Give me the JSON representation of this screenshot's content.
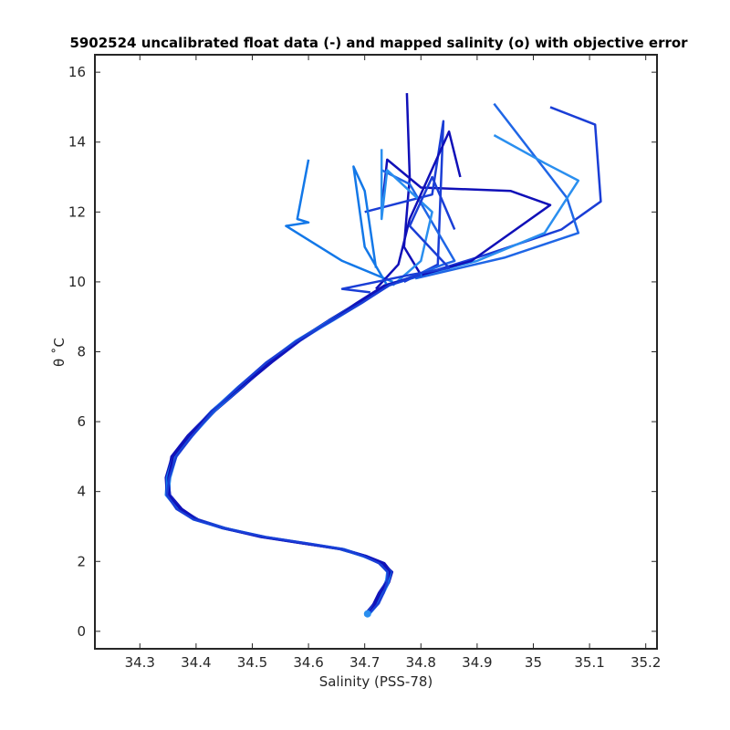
{
  "chart_data": {
    "type": "line",
    "title": "5902524 uncalibrated float data (-) and mapped salinity (o) with objective error",
    "xlabel": "Salinity (PSS-78)",
    "ylabel": "θ ˚C",
    "xlim": [
      34.22,
      35.22
    ],
    "ylim": [
      -0.5,
      16.5
    ],
    "xticks": [
      "34.3",
      "34.4",
      "34.5",
      "34.6",
      "34.7",
      "34.8",
      "34.9",
      "35",
      "35.1",
      "35.2"
    ],
    "yticks": [
      "0",
      "2",
      "4",
      "6",
      "8",
      "10",
      "12",
      "14",
      "16"
    ],
    "grid": false,
    "colors": [
      "#1010b8",
      "#1a3ed6",
      "#1f66e6",
      "#2a8fef",
      "#1378e8"
    ],
    "common_profile": [
      [
        34.705,
        0.5
      ],
      [
        34.72,
        0.8
      ],
      [
        34.73,
        1.1
      ],
      [
        34.74,
        1.4
      ],
      [
        34.745,
        1.7
      ],
      [
        34.73,
        1.95
      ],
      [
        34.7,
        2.15
      ],
      [
        34.66,
        2.35
      ],
      [
        34.6,
        2.5
      ],
      [
        34.52,
        2.7
      ],
      [
        34.45,
        2.95
      ],
      [
        34.4,
        3.2
      ],
      [
        34.37,
        3.5
      ],
      [
        34.35,
        3.9
      ],
      [
        34.35,
        4.4
      ],
      [
        34.36,
        5.0
      ],
      [
        34.39,
        5.6
      ],
      [
        34.43,
        6.3
      ],
      [
        34.48,
        7.0
      ],
      [
        34.53,
        7.7
      ],
      [
        34.58,
        8.3
      ],
      [
        34.64,
        8.9
      ],
      [
        34.69,
        9.4
      ],
      [
        34.74,
        9.9
      ],
      [
        34.8,
        10.2
      ]
    ],
    "upper_profiles": [
      [
        [
          34.8,
          10.2
        ],
        [
          34.77,
          11.0
        ],
        [
          34.78,
          13.0
        ],
        [
          34.775,
          15.4
        ]
      ],
      [
        [
          34.8,
          10.2
        ],
        [
          34.92,
          10.8
        ],
        [
          35.05,
          11.5
        ],
        [
          35.12,
          12.3
        ],
        [
          35.11,
          14.5
        ],
        [
          35.03,
          15.0
        ]
      ],
      [
        [
          34.79,
          10.1
        ],
        [
          34.95,
          10.7
        ],
        [
          35.08,
          11.4
        ],
        [
          35.06,
          12.4
        ],
        [
          34.93,
          15.1
        ]
      ],
      [
        [
          34.78,
          10.1
        ],
        [
          34.9,
          10.6
        ],
        [
          35.02,
          11.4
        ],
        [
          35.08,
          12.9
        ],
        [
          35.02,
          13.4
        ],
        [
          34.93,
          14.2
        ]
      ],
      [
        [
          34.75,
          10.0
        ],
        [
          34.66,
          10.6
        ],
        [
          34.56,
          11.6
        ],
        [
          34.6,
          11.7
        ],
        [
          34.58,
          11.8
        ],
        [
          34.6,
          13.5
        ]
      ],
      [
        [
          34.78,
          10.1
        ],
        [
          34.89,
          10.6
        ],
        [
          35.03,
          12.2
        ],
        [
          34.96,
          12.6
        ],
        [
          34.8,
          12.7
        ],
        [
          34.74,
          13.5
        ],
        [
          34.73,
          12.0
        ]
      ],
      [
        [
          34.77,
          10.0
        ],
        [
          34.83,
          10.5
        ],
        [
          34.84,
          14.6
        ],
        [
          34.82,
          12.5
        ],
        [
          34.7,
          12.0
        ]
      ],
      [
        [
          34.76,
          10.0
        ],
        [
          34.84,
          10.5
        ],
        [
          34.86,
          10.6
        ],
        [
          34.78,
          12.8
        ],
        [
          34.73,
          13.2
        ]
      ],
      [
        [
          34.75,
          9.9
        ],
        [
          34.8,
          10.6
        ],
        [
          34.82,
          12.0
        ],
        [
          34.74,
          13.2
        ],
        [
          34.73,
          11.8
        ],
        [
          34.73,
          13.8
        ]
      ],
      [
        [
          34.74,
          9.9
        ],
        [
          34.7,
          11.0
        ],
        [
          34.68,
          13.3
        ],
        [
          34.7,
          12.6
        ],
        [
          34.72,
          10.4
        ]
      ],
      [
        [
          34.72,
          9.8
        ],
        [
          34.76,
          10.5
        ],
        [
          34.78,
          11.8
        ],
        [
          34.85,
          14.3
        ],
        [
          34.87,
          13.0
        ]
      ],
      [
        [
          34.71,
          9.7
        ],
        [
          34.66,
          9.8
        ],
        [
          34.78,
          10.2
        ],
        [
          34.85,
          10.4
        ],
        [
          34.78,
          11.6
        ],
        [
          34.82,
          13.0
        ],
        [
          34.86,
          11.5
        ]
      ]
    ],
    "end_marker": [
      34.705,
      0.5
    ]
  }
}
